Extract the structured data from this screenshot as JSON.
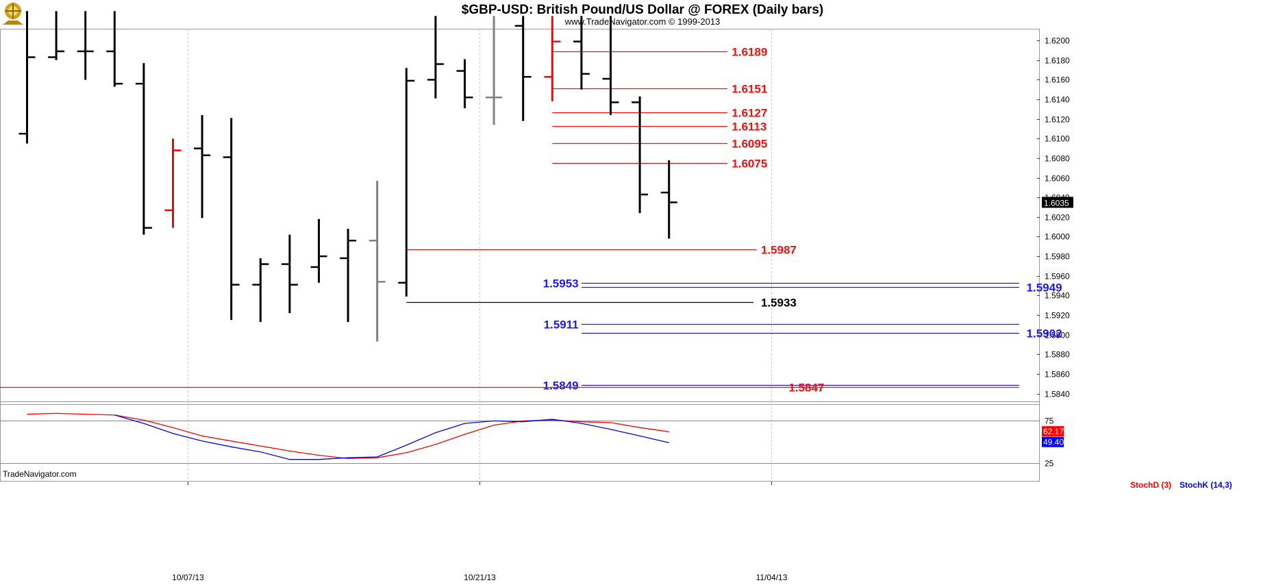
{
  "header": {
    "title": "$GBP-USD:  British Pound/US Dollar @ FOREX  (Daily bars)",
    "subtitle": "www.TradeNavigator.com © 1999-2013"
  },
  "watermark": "TradeNavigator.com",
  "colors": {
    "bar_black": "#000000",
    "bar_red": "#ff0000",
    "bar_gray": "#808080",
    "level_red": "#ee1111",
    "level_blue": "#1a1aee",
    "level_black": "#000000",
    "stochd": "#ff0000",
    "stochk": "#0000ff",
    "grid": "#c8c8c8",
    "logo": "#d4a017"
  },
  "chart_data": {
    "type": "ohlc",
    "title": "$GBP-USD:  British Pound/US Dollar @ FOREX  (Daily bars)",
    "price_axis": {
      "ylim": [
        1.5832,
        1.6212
      ],
      "ticks": [
        "1.6200",
        "1.6180",
        "1.6160",
        "1.6140",
        "1.6120",
        "1.6100",
        "1.6080",
        "1.6060",
        "1.6040",
        "1.6020",
        "1.6000",
        "1.5980",
        "1.5960",
        "1.5940",
        "1.5920",
        "1.5900",
        "1.5880",
        "1.5860",
        "1.5840"
      ],
      "last_price": "1.6035"
    },
    "x_axis": {
      "labels": [
        {
          "label": "10/07/13",
          "bar": 5.5
        },
        {
          "label": "10/21/13",
          "bar": 15.5
        },
        {
          "label": "11/04/13",
          "bar": 25.5
        }
      ],
      "bar_count": 31
    },
    "bars": [
      {
        "i": 0,
        "open": 1.6105,
        "high": 1.623,
        "low": 1.6095,
        "close": 1.6183,
        "color": "black"
      },
      {
        "i": 1,
        "open": 1.6183,
        "high": 1.623,
        "low": 1.618,
        "close": 1.6189,
        "color": "black"
      },
      {
        "i": 2,
        "open": 1.6189,
        "high": 1.623,
        "low": 1.616,
        "close": 1.6189,
        "color": "black"
      },
      {
        "i": 3,
        "open": 1.6189,
        "high": 1.623,
        "low": 1.6153,
        "close": 1.6156,
        "color": "black"
      },
      {
        "i": 4,
        "open": 1.6156,
        "high": 1.6177,
        "low": 1.6002,
        "close": 1.6009,
        "color": "black"
      },
      {
        "i": 5,
        "open": 1.6027,
        "high": 1.61,
        "low": 1.6009,
        "close": 1.6088,
        "color": "red"
      },
      {
        "i": 6,
        "open": 1.609,
        "high": 1.6124,
        "low": 1.6019,
        "close": 1.6083,
        "color": "black"
      },
      {
        "i": 7,
        "open": 1.6081,
        "high": 1.6121,
        "low": 1.5915,
        "close": 1.5951,
        "color": "black"
      },
      {
        "i": 8,
        "open": 1.5951,
        "high": 1.5978,
        "low": 1.5913,
        "close": 1.5972,
        "color": "black"
      },
      {
        "i": 9,
        "open": 1.5972,
        "high": 1.6002,
        "low": 1.5922,
        "close": 1.5951,
        "color": "black"
      },
      {
        "i": 10,
        "open": 1.5969,
        "high": 1.6018,
        "low": 1.5953,
        "close": 1.598,
        "color": "black"
      },
      {
        "i": 11,
        "open": 1.5978,
        "high": 1.6008,
        "low": 1.5913,
        "close": 1.5996,
        "color": "black"
      },
      {
        "i": 12,
        "open": 1.5996,
        "high": 1.6057,
        "low": 1.5893,
        "close": 1.5954,
        "color": "gray"
      },
      {
        "i": 13,
        "open": 1.5953,
        "high": 1.6172,
        "low": 1.5939,
        "close": 1.6159,
        "color": "black"
      },
      {
        "i": 14,
        "open": 1.616,
        "high": 1.6225,
        "low": 1.6141,
        "close": 1.6176,
        "color": "black"
      },
      {
        "i": 15,
        "open": 1.6169,
        "high": 1.6181,
        "low": 1.6131,
        "close": 1.6142,
        "color": "black"
      },
      {
        "i": 16,
        "open": 1.6142,
        "high": 1.6225,
        "low": 1.6114,
        "close": 1.6142,
        "color": "gray"
      },
      {
        "i": 17,
        "open": 1.6215,
        "high": 1.6225,
        "low": 1.6118,
        "close": 1.6163,
        "color": "black"
      },
      {
        "i": 18,
        "open": 1.6163,
        "high": 1.6225,
        "low": 1.6138,
        "close": 1.6199,
        "color": "red"
      },
      {
        "i": 19,
        "open": 1.6199,
        "high": 1.6225,
        "low": 1.615,
        "close": 1.6166,
        "color": "black"
      },
      {
        "i": 20,
        "open": 1.6161,
        "high": 1.6225,
        "low": 1.6124,
        "close": 1.6137,
        "color": "black"
      },
      {
        "i": 21,
        "open": 1.6137,
        "high": 1.6143,
        "low": 1.6024,
        "close": 1.6043,
        "color": "black"
      },
      {
        "i": 22,
        "open": 1.6045,
        "high": 1.6078,
        "low": 1.5998,
        "close": 1.6035,
        "color": "black"
      }
    ],
    "levels": [
      {
        "value": 1.6189,
        "label": "1.6189",
        "color": "red",
        "x_from": 18.0,
        "x_to": 24.0,
        "label_side": "right",
        "label_bar": 24.15
      },
      {
        "value": 1.6151,
        "label": "1.6151",
        "color": "red",
        "x_from": 18.0,
        "x_to": 24.0,
        "label_side": "right",
        "label_bar": 24.15
      },
      {
        "value": 1.6127,
        "label": "1.6127",
        "color": "red",
        "x_from": 18.0,
        "x_to": 24.0,
        "label_side": "right",
        "label_bar": 24.15
      },
      {
        "value": 1.6113,
        "label": "1.6113",
        "color": "red",
        "x_from": 18.0,
        "x_to": 24.0,
        "label_side": "right",
        "label_bar": 24.15
      },
      {
        "value": 1.6095,
        "label": "1.6095",
        "color": "red",
        "x_from": 18.0,
        "x_to": 24.0,
        "label_side": "right",
        "label_bar": 24.15
      },
      {
        "value": 1.6075,
        "label": "1.6075",
        "color": "red",
        "x_from": 18.0,
        "x_to": 24.0,
        "label_side": "right",
        "label_bar": 24.15
      },
      {
        "value": 1.5987,
        "label": "1.5987",
        "color": "red",
        "x_from": 13.0,
        "x_to": 25.0,
        "label_side": "right",
        "label_bar": 25.15
      },
      {
        "value": 1.5933,
        "label": "1.5933",
        "color": "black",
        "x_from": 13.0,
        "x_to": 24.9,
        "label_side": "right",
        "label_bar": 25.15
      },
      {
        "value": 1.5953,
        "label": "1.5953",
        "color": "blue",
        "x_from": 19.0,
        "x_to": 34.0,
        "label_side": "left",
        "label_bar": 18.9
      },
      {
        "value": 1.5949,
        "label": "1.5949",
        "color": "blue",
        "x_from": 19.0,
        "x_to": 34.0,
        "label_side": "right",
        "label_bar": 34.25
      },
      {
        "value": 1.5911,
        "label": "1.5911",
        "color": "blue",
        "x_from": 19.0,
        "x_to": 34.0,
        "label_side": "left",
        "label_bar": 18.9
      },
      {
        "value": 1.5902,
        "label": "1.5902",
        "color": "blue",
        "x_from": 19.0,
        "x_to": 34.0,
        "label_side": "right",
        "label_bar": 34.25
      },
      {
        "value": 1.5849,
        "label": "1.5849",
        "color": "blue",
        "x_from": 19.0,
        "x_to": 34.0,
        "label_side": "left",
        "label_bar": 18.9
      },
      {
        "value": 1.5847,
        "label": "1.5847",
        "color": "red",
        "x_from": -1.0,
        "x_to": 34.0,
        "label_side": "right",
        "label_bar": 26.1
      }
    ],
    "stochastic": {
      "ylim": [
        5,
        95
      ],
      "levels": [
        75,
        25
      ],
      "tick_labels": [
        "75",
        "25"
      ],
      "legend": [
        {
          "name": "StochD (3)",
          "color": "red"
        },
        {
          "name": "StochK (14,3)",
          "color": "blue"
        }
      ],
      "stochd_last": "62.17",
      "stochk_last": "49.40",
      "stochd": [
        [
          0,
          83
        ],
        [
          1,
          84
        ],
        [
          3,
          82
        ],
        [
          4,
          76
        ],
        [
          5,
          67
        ],
        [
          6,
          57
        ],
        [
          7,
          51
        ],
        [
          8,
          45
        ],
        [
          9,
          39
        ],
        [
          10,
          34
        ],
        [
          11,
          30
        ],
        [
          12,
          31
        ],
        [
          13,
          37
        ],
        [
          14,
          47
        ],
        [
          15,
          59
        ],
        [
          16,
          70
        ],
        [
          17,
          75
        ],
        [
          18,
          76
        ],
        [
          19,
          74
        ],
        [
          20,
          73
        ],
        [
          21,
          67
        ],
        [
          22,
          62
        ]
      ],
      "stochk": [
        [
          3,
          82
        ],
        [
          4,
          72
        ],
        [
          5,
          60
        ],
        [
          6,
          51
        ],
        [
          7,
          44
        ],
        [
          8,
          38
        ],
        [
          9,
          29
        ],
        [
          10,
          29
        ],
        [
          11,
          31
        ],
        [
          12,
          32
        ],
        [
          13,
          46
        ],
        [
          14,
          61
        ],
        [
          15,
          72
        ],
        [
          16,
          75
        ],
        [
          17,
          74
        ],
        [
          18,
          77
        ],
        [
          19,
          72
        ],
        [
          20,
          65
        ],
        [
          21,
          57
        ],
        [
          22,
          49
        ]
      ]
    }
  }
}
